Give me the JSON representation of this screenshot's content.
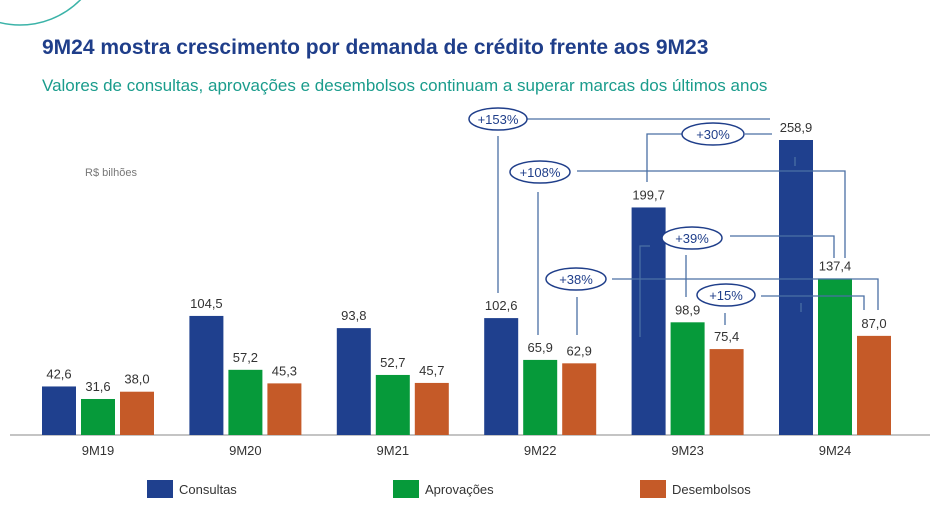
{
  "title": "9M24 mostra crescimento por demanda de crédito frente aos 9M23",
  "subtitle": "Valores de consultas, aprovações e desembolsos continuam a superar marcas dos últimos anos",
  "chart_data": {
    "type": "bar",
    "unit_label": "R$ bilhões",
    "categories": [
      "9M19",
      "9M20",
      "9M21",
      "9M22",
      "9M23",
      "9M24"
    ],
    "series": [
      {
        "name": "Consultas",
        "color": "#1F408E",
        "values": [
          42.6,
          104.5,
          93.8,
          102.6,
          199.7,
          258.9
        ],
        "labels": [
          "42,6",
          "104,5",
          "93,8",
          "102,6",
          "199,7",
          "258,9"
        ]
      },
      {
        "name": "Aprovações",
        "color": "#069A3A",
        "values": [
          31.6,
          57.2,
          52.7,
          65.9,
          98.9,
          137.4
        ],
        "labels": [
          "31,6",
          "57,2",
          "52,7",
          "65,9",
          "98,9",
          "137,4"
        ]
      },
      {
        "name": "Desembolsos",
        "color": "#C55A28",
        "values": [
          38.0,
          45.3,
          45.7,
          62.9,
          75.4,
          87.0
        ],
        "labels": [
          "38,0",
          "45,3",
          "45,7",
          "62,9",
          "75,4",
          "87,0"
        ]
      }
    ],
    "annotations": [
      {
        "label": "+153%",
        "from": "9M22 Consultas",
        "to": "9M24 Consultas"
      },
      {
        "label": "+30%",
        "from": "9M23 Consultas",
        "to": "9M24 Consultas"
      },
      {
        "label": "+108%",
        "from": "9M22 Aprovações",
        "to": "9M24 Aprovações"
      },
      {
        "label": "+39%",
        "from": "9M23 Aprovações",
        "to": "9M24 Aprovações"
      },
      {
        "label": "+38%",
        "from": "9M22 Desembolsos",
        "to": "9M24 Desembolsos"
      },
      {
        "label": "+15%",
        "from": "9M23 Desembolsos",
        "to": "9M24 Desembolsos"
      }
    ],
    "ylim": [
      0,
      260
    ],
    "grid": false,
    "legend": "bottom"
  }
}
